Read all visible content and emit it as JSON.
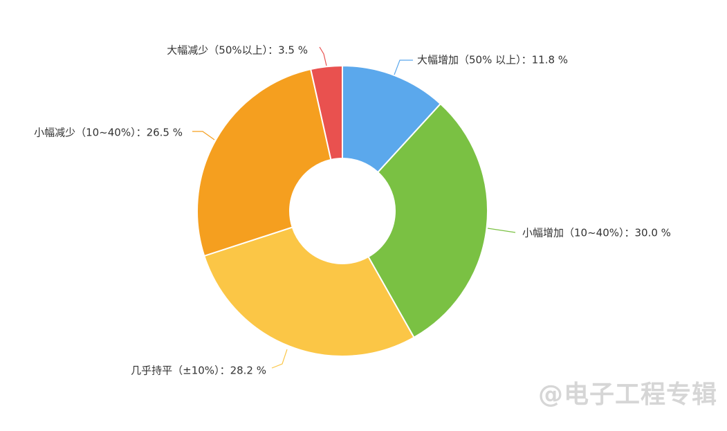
{
  "chart_data": {
    "type": "pie",
    "title": "",
    "donut": true,
    "start": "top, clockwise",
    "slices": [
      {
        "name": "大幅增加（50% 以上）",
        "value": 11.8,
        "label": "大幅增加（50% 以上）：11.8 %",
        "color": "#5ba8ec"
      },
      {
        "name": "小幅增加（10~40%）",
        "value": 30.0,
        "label": "小幅增加（10~40%）：30.0 %",
        "color": "#7ac143"
      },
      {
        "name": "几乎持平（±10%）",
        "value": 28.2,
        "label": "几乎持平（±10%）：28.2 %",
        "color": "#fbc646"
      },
      {
        "name": "小幅减少（10~40%）",
        "value": 26.5,
        "label": "小幅减少（10~40%）：26.5 %",
        "color": "#f59f1f"
      },
      {
        "name": "大幅减少（50%以上）",
        "value": 3.5,
        "label": "大幅减少（50%以上）：3.5 %",
        "color": "#e9514f"
      }
    ]
  },
  "watermark": "@电子工程专辑"
}
